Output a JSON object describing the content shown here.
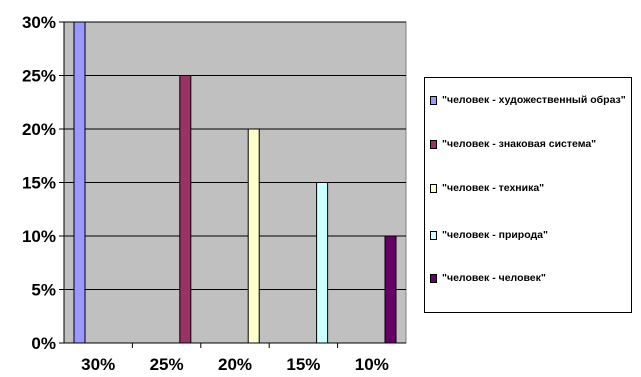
{
  "chart_data": {
    "type": "bar",
    "categories": [
      "30%",
      "25%",
      "20%",
      "15%",
      "10%"
    ],
    "values": [
      30,
      25,
      20,
      15,
      10
    ],
    "ylim": [
      0,
      30
    ],
    "yticks": [
      "0%",
      "5%",
      "10%",
      "15%",
      "20%",
      "25%",
      "30%"
    ],
    "plot_background": "#c0c0c0",
    "grid": true,
    "legend_position": "right",
    "series": [
      {
        "name": "\"человек - художественный образ\"",
        "color": "#9999ff"
      },
      {
        "name": "\"человек - знаковая система\"",
        "color": "#993366"
      },
      {
        "name": "\"человек - техника\"",
        "color": "#ffffcc"
      },
      {
        "name": "\"человек - природа\"",
        "color": "#ccffff"
      },
      {
        "name": "\"человек - человек\"",
        "color": "#660066"
      }
    ]
  }
}
